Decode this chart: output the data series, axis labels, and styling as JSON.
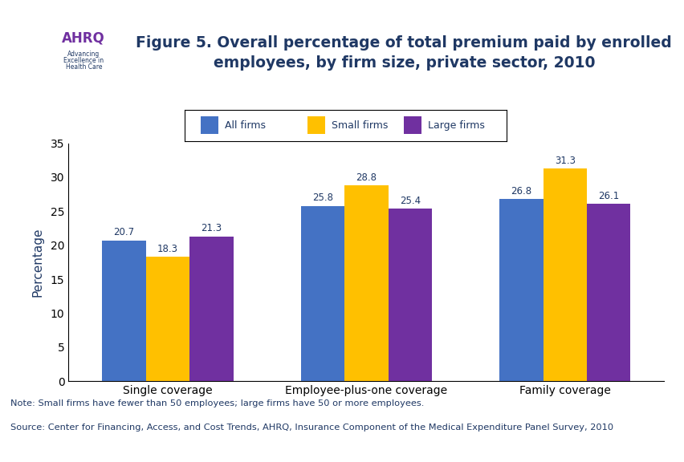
{
  "title": "Figure 5. Overall percentage of total premium paid by enrolled\nemployees, by firm size, private sector, 2010",
  "categories": [
    "Single coverage",
    "Employee-plus-one coverage",
    "Family coverage"
  ],
  "series": {
    "All firms": [
      20.7,
      25.8,
      26.8
    ],
    "Small firms": [
      18.3,
      28.8,
      31.3
    ],
    "Large firms": [
      21.3,
      25.4,
      26.1
    ]
  },
  "colors": {
    "All firms": "#4472C4",
    "Small firms": "#FFC000",
    "Large firms": "#7030A0"
  },
  "ylabel": "Percentage",
  "ylim": [
    0,
    35
  ],
  "yticks": [
    0,
    5,
    10,
    15,
    20,
    25,
    30,
    35
  ],
  "legend_labels": [
    "All firms",
    "Small firms",
    "Large firms"
  ],
  "note_line1": "Note: Small firms have fewer than 50 employees; large firms have 50 or more employees.",
  "note_line2": "Source: Center for Financing, Access, and Cost Trends, AHRQ, Insurance Component of the Medical Expenditure Panel Survey, 2010",
  "title_color": "#1F3864",
  "note_color": "#1F3864",
  "bar_width": 0.22,
  "dark_blue": "#1F3864",
  "teal": "#008B8B"
}
